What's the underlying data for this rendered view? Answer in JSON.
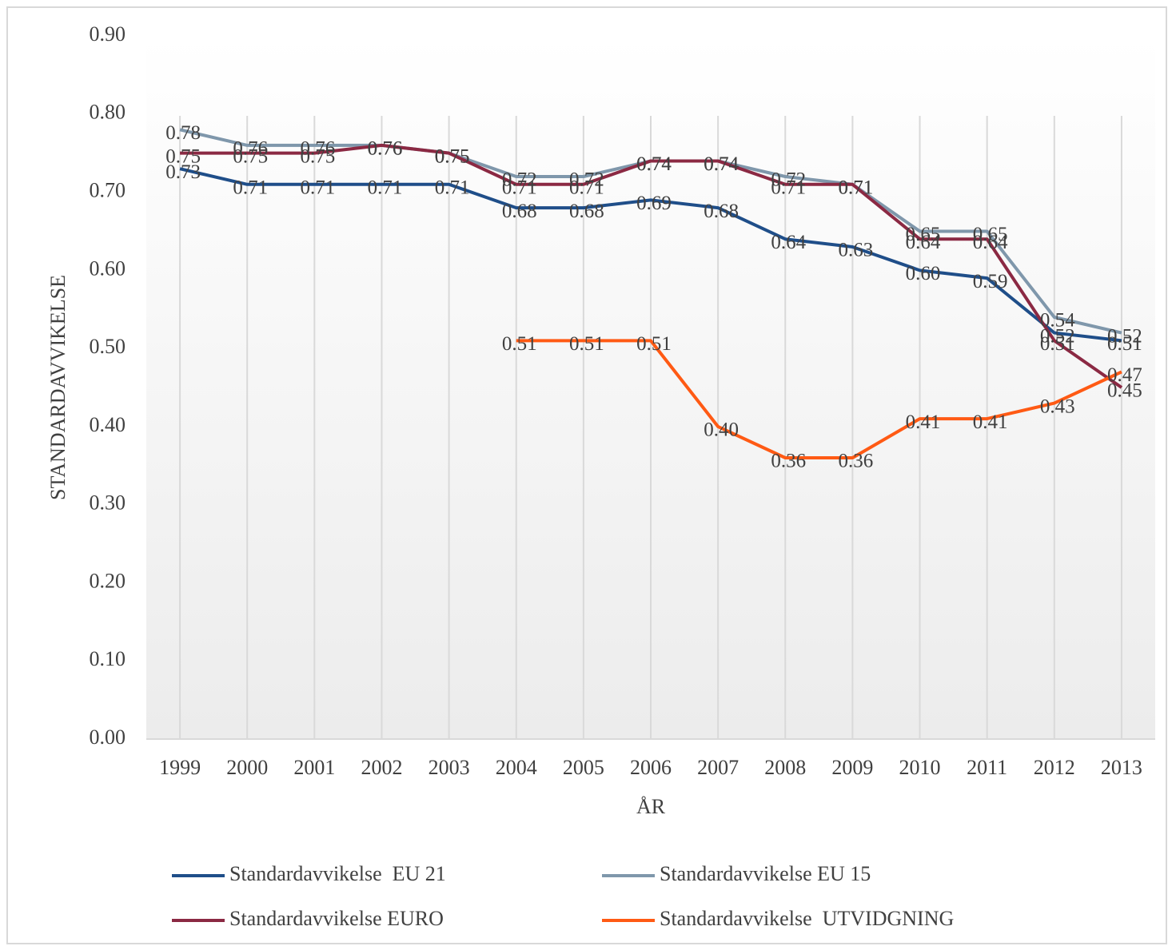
{
  "chart_data": {
    "type": "line",
    "y_label": "STANDARDAVVIKELSE",
    "x_label": "ÅR",
    "categories": [
      "1999",
      "2000",
      "2001",
      "2002",
      "2003",
      "2004",
      "2005",
      "2006",
      "2007",
      "2008",
      "2009",
      "2010",
      "2011",
      "2012",
      "2013"
    ],
    "series": [
      {
        "name": "Standardavvikelse  EU 21",
        "color": "#1f4e89",
        "values": [
          0.73,
          0.71,
          0.71,
          0.71,
          0.71,
          0.68,
          0.68,
          0.69,
          0.68,
          0.64,
          0.63,
          0.6,
          0.59,
          0.52,
          0.51
        ],
        "value_labels": [
          "0.73",
          "0.71",
          "0.71",
          "0.71",
          "0.71",
          "0.68",
          "0.68",
          "0.69",
          "0.68",
          "0.64",
          "0.63",
          "0.60",
          "0.59",
          "0.52",
          "0.51"
        ]
      },
      {
        "name": "Standardavvikelse EU 15",
        "color": "#7f97ab",
        "values": [
          0.78,
          0.76,
          0.76,
          0.76,
          0.75,
          0.72,
          0.72,
          0.74,
          0.74,
          0.72,
          0.71,
          0.65,
          0.65,
          0.54,
          0.52
        ],
        "value_labels": [
          "0.78",
          "0.76",
          "0.76",
          "0.76",
          "0.75",
          "0.72",
          "0.72",
          "0.74",
          "0.74",
          "0.72",
          "0.71",
          "0.65",
          "0.65",
          "0.54",
          "0.52"
        ]
      },
      {
        "name": "Standardavvikelse EURO",
        "color": "#8b2943",
        "values": [
          0.75,
          0.75,
          0.75,
          0.76,
          0.75,
          0.71,
          0.71,
          0.74,
          0.74,
          0.71,
          0.71,
          0.64,
          0.64,
          0.51,
          0.45
        ],
        "value_labels": [
          "0.75",
          "0.75",
          "0.75",
          "0.76",
          "0.75",
          "0.71",
          "0.71",
          "0.74",
          "0.74",
          "0.71",
          "0.71",
          "0.64",
          "0.64",
          "0.51",
          "0.45"
        ]
      },
      {
        "name": "Standardavvikelse  UTVIDGNING",
        "color": "#ff5a14",
        "values": [
          null,
          null,
          null,
          null,
          null,
          0.51,
          0.51,
          0.51,
          0.4,
          0.36,
          0.36,
          0.41,
          0.41,
          0.43,
          0.47
        ],
        "value_labels": [
          null,
          null,
          null,
          null,
          null,
          "0.51",
          "0.51",
          "0.51",
          "0.40",
          "0.36",
          "0.36",
          "0.41",
          "0.41",
          "0.43",
          "0.47"
        ]
      }
    ],
    "ylim": [
      0,
      0.9
    ],
    "yticks": [
      {
        "value": 0,
        "label": "0.00"
      },
      {
        "value": 0.1,
        "label": "0.10"
      },
      {
        "value": 0.2,
        "label": "0.20"
      },
      {
        "value": 0.3,
        "label": "0.30"
      },
      {
        "value": 0.4,
        "label": "0.40"
      },
      {
        "value": 0.5,
        "label": "0.50"
      },
      {
        "value": 0.6,
        "label": "0.60"
      },
      {
        "value": 0.7,
        "label": "0.70"
      },
      {
        "value": 0.8,
        "label": "0.80"
      },
      {
        "value": 0.9,
        "label": "0.90"
      }
    ],
    "grid": true,
    "legend": "bottom"
  }
}
